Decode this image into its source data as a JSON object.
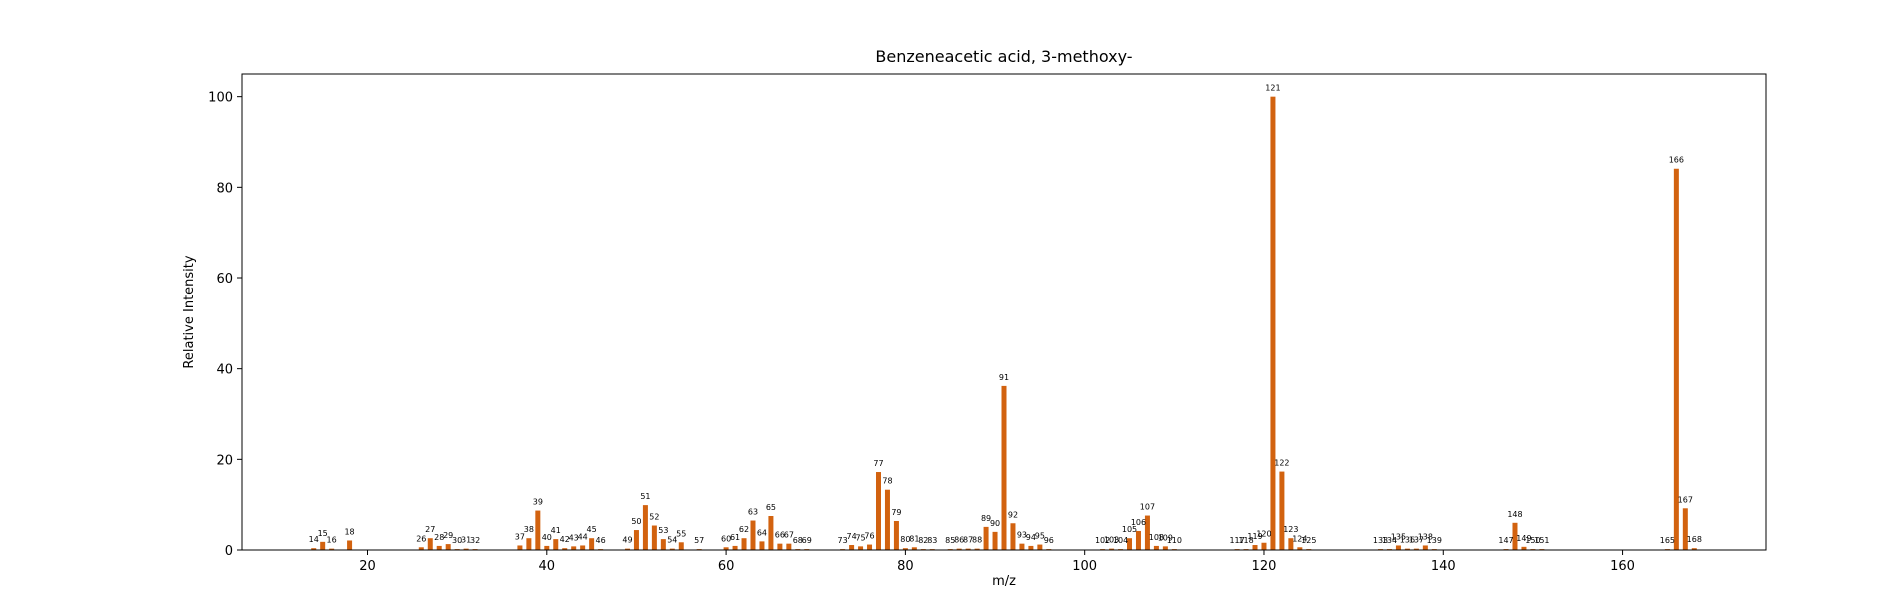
{
  "chart_data": {
    "type": "bar",
    "title": "Benzeneacetic acid, 3-methoxy-",
    "xlabel": "m/z",
    "ylabel": "Relative Intensity",
    "xlim": [
      6,
      176
    ],
    "ylim": [
      0,
      105
    ],
    "xticks": [
      20,
      40,
      60,
      80,
      100,
      120,
      140,
      160
    ],
    "yticks": [
      0,
      20,
      40,
      60,
      80,
      100
    ],
    "bar_color": "#d2620f",
    "grid": false,
    "points": [
      {
        "x": 14,
        "y": 0.4
      },
      {
        "x": 15,
        "y": 1.8
      },
      {
        "x": 16,
        "y": 0.3
      },
      {
        "x": 18,
        "y": 2.1
      },
      {
        "x": 26,
        "y": 0.6
      },
      {
        "x": 27,
        "y": 2.6
      },
      {
        "x": 28,
        "y": 0.9
      },
      {
        "x": 29,
        "y": 1.3
      },
      {
        "x": 30,
        "y": 0.2
      },
      {
        "x": 31,
        "y": 0.3
      },
      {
        "x": 32,
        "y": 0.2
      },
      {
        "x": 37,
        "y": 1.0
      },
      {
        "x": 38,
        "y": 2.6
      },
      {
        "x": 39,
        "y": 8.7
      },
      {
        "x": 40,
        "y": 0.9
      },
      {
        "x": 41,
        "y": 2.4
      },
      {
        "x": 42,
        "y": 0.4
      },
      {
        "x": 43,
        "y": 0.8
      },
      {
        "x": 44,
        "y": 1.0
      },
      {
        "x": 45,
        "y": 2.6
      },
      {
        "x": 46,
        "y": 0.2
      },
      {
        "x": 49,
        "y": 0.3
      },
      {
        "x": 50,
        "y": 4.4
      },
      {
        "x": 51,
        "y": 9.9
      },
      {
        "x": 52,
        "y": 5.4
      },
      {
        "x": 53,
        "y": 2.4
      },
      {
        "x": 54,
        "y": 0.3
      },
      {
        "x": 55,
        "y": 1.7
      },
      {
        "x": 57,
        "y": 0.2
      },
      {
        "x": 60,
        "y": 0.6
      },
      {
        "x": 61,
        "y": 0.9
      },
      {
        "x": 62,
        "y": 2.6
      },
      {
        "x": 63,
        "y": 6.5
      },
      {
        "x": 64,
        "y": 1.9
      },
      {
        "x": 65,
        "y": 7.5
      },
      {
        "x": 66,
        "y": 1.4
      },
      {
        "x": 67,
        "y": 1.4
      },
      {
        "x": 68,
        "y": 0.2
      },
      {
        "x": 69,
        "y": 0.2
      },
      {
        "x": 73,
        "y": 0.2
      },
      {
        "x": 74,
        "y": 1.1
      },
      {
        "x": 75,
        "y": 0.8
      },
      {
        "x": 76,
        "y": 1.2
      },
      {
        "x": 77,
        "y": 17.2
      },
      {
        "x": 78,
        "y": 13.3
      },
      {
        "x": 79,
        "y": 6.4
      },
      {
        "x": 80,
        "y": 0.4
      },
      {
        "x": 81,
        "y": 0.6
      },
      {
        "x": 82,
        "y": 0.2
      },
      {
        "x": 83,
        "y": 0.2
      },
      {
        "x": 85,
        "y": 0.2
      },
      {
        "x": 86,
        "y": 0.3
      },
      {
        "x": 87,
        "y": 0.3
      },
      {
        "x": 88,
        "y": 0.3
      },
      {
        "x": 89,
        "y": 5.1
      },
      {
        "x": 90,
        "y": 4.0
      },
      {
        "x": 91,
        "y": 36.2
      },
      {
        "x": 92,
        "y": 5.9
      },
      {
        "x": 93,
        "y": 1.4
      },
      {
        "x": 94,
        "y": 0.9
      },
      {
        "x": 95,
        "y": 1.2
      },
      {
        "x": 96,
        "y": 0.2
      },
      {
        "x": 102,
        "y": 0.2
      },
      {
        "x": 103,
        "y": 0.3
      },
      {
        "x": 104,
        "y": 0.2
      },
      {
        "x": 105,
        "y": 2.6
      },
      {
        "x": 106,
        "y": 4.2
      },
      {
        "x": 107,
        "y": 7.6
      },
      {
        "x": 108,
        "y": 0.9
      },
      {
        "x": 109,
        "y": 0.8
      },
      {
        "x": 110,
        "y": 0.2
      },
      {
        "x": 117,
        "y": 0.2
      },
      {
        "x": 118,
        "y": 0.2
      },
      {
        "x": 119,
        "y": 1.1
      },
      {
        "x": 120,
        "y": 1.6
      },
      {
        "x": 121,
        "y": 100
      },
      {
        "x": 122,
        "y": 17.3
      },
      {
        "x": 123,
        "y": 2.6
      },
      {
        "x": 124,
        "y": 0.6
      },
      {
        "x": 125,
        "y": 0.2
      },
      {
        "x": 133,
        "y": 0.2
      },
      {
        "x": 134,
        "y": 0.2
      },
      {
        "x": 135,
        "y": 1.0
      },
      {
        "x": 136,
        "y": 0.3
      },
      {
        "x": 137,
        "y": 0.3
      },
      {
        "x": 138,
        "y": 1.0
      },
      {
        "x": 139,
        "y": 0.2
      },
      {
        "x": 147,
        "y": 0.2
      },
      {
        "x": 148,
        "y": 6.0
      },
      {
        "x": 149,
        "y": 0.7
      },
      {
        "x": 150,
        "y": 0.2
      },
      {
        "x": 151,
        "y": 0.2
      },
      {
        "x": 165,
        "y": 0.2
      },
      {
        "x": 166,
        "y": 84.1
      },
      {
        "x": 167,
        "y": 9.2
      },
      {
        "x": 168,
        "y": 0.4
      }
    ]
  }
}
